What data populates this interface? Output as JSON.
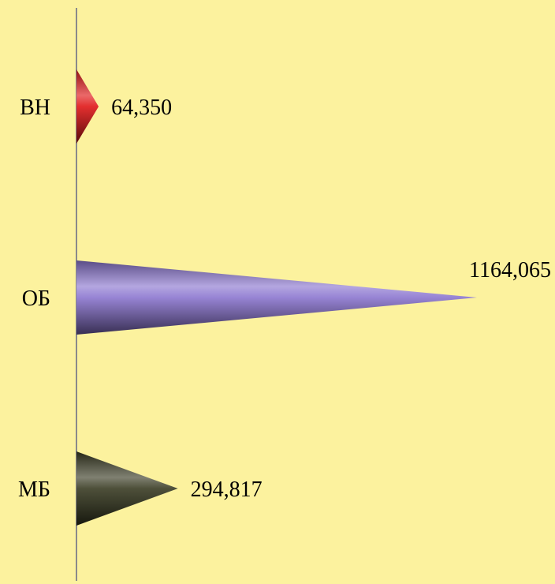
{
  "chart_data": {
    "type": "bar",
    "orientation": "horizontal",
    "shape": "cone",
    "categories": [
      "ВН",
      "ОБ",
      "МБ"
    ],
    "values": [
      64.35,
      1164.065,
      294.817
    ],
    "value_labels": [
      "64,350",
      "1164,065",
      "294,817"
    ],
    "colors": [
      "#e01818",
      "#8b76cf",
      "#3a3c24"
    ],
    "title": "",
    "xlabel": "",
    "ylabel": "",
    "xlim": [
      0,
      1164.065
    ],
    "grid": false,
    "legend": "none"
  }
}
